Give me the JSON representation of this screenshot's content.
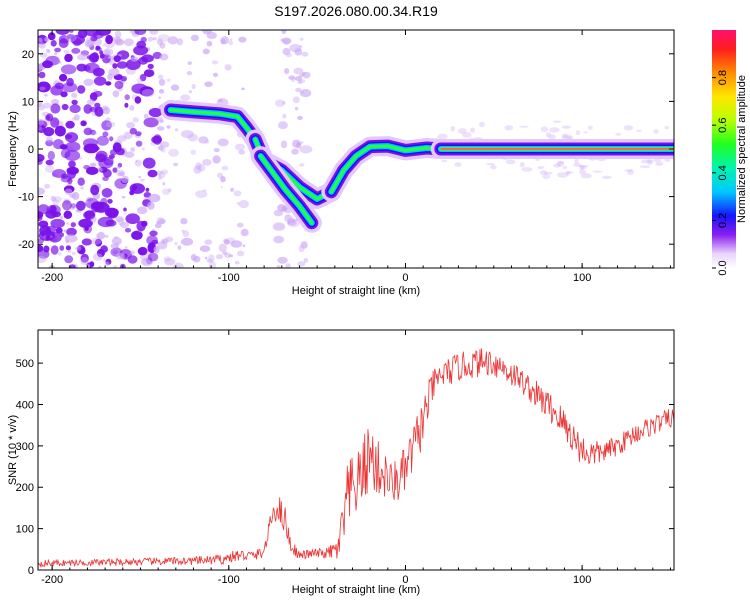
{
  "title": "S197.2026.080.00.34.R19",
  "colors": {
    "snr_line": "#ee3333",
    "blob_purple": "#7a10ea",
    "blob_light": "#cda8f7",
    "axis": "#000000"
  },
  "chart_data": [
    {
      "type": "heatmap",
      "name": "spectrogram",
      "xlabel": "Height of straight line (km)",
      "ylabel": "Frequency (Hz)",
      "xlim": [
        -208,
        152
      ],
      "ylim": [
        -25,
        25
      ],
      "xticks": [
        -200,
        -100,
        0,
        100
      ],
      "xtick_labels": [
        "-200",
        "-100",
        "0",
        "100"
      ],
      "yticks": [
        -20,
        -10,
        0,
        10,
        20
      ],
      "ytick_labels": [
        "-20",
        "-10",
        "0",
        "10",
        "20"
      ],
      "colorbar": {
        "label": "Normalized spectral amplitude",
        "range": [
          0,
          1
        ],
        "ticks": [
          0.0,
          0.2,
          0.4,
          0.6,
          0.8
        ],
        "tick_labels": [
          "0.0",
          "0.2",
          "0.4",
          "0.6",
          "0.8"
        ]
      },
      "ridges": [
        {
          "name": "upper-branch",
          "points": [
            [
              -133,
              8.2
            ],
            [
              -120,
              7.8
            ],
            [
              -105,
              7.4
            ],
            [
              -95,
              6.8
            ],
            [
              -90,
              4.5
            ],
            [
              -85,
              2.0
            ]
          ]
        },
        {
          "name": "descending-branch-a",
          "points": [
            [
              -85,
              2.0
            ],
            [
              -80,
              -2.5
            ],
            [
              -70,
              -4.5
            ],
            [
              -60,
              -8.0
            ],
            [
              -50,
              -10.5
            ],
            [
              -42,
              -9.0
            ]
          ]
        },
        {
          "name": "descending-branch-b",
          "points": [
            [
              -82,
              -1.5
            ],
            [
              -75,
              -5.0
            ],
            [
              -68,
              -8.5
            ],
            [
              -60,
              -12.0
            ],
            [
              -53,
              -15.5
            ]
          ]
        },
        {
          "name": "rising-branch",
          "points": [
            [
              -42,
              -9.0
            ],
            [
              -35,
              -4.5
            ],
            [
              -28,
              -1.5
            ],
            [
              -20,
              0.5
            ],
            [
              -10,
              0.6
            ],
            [
              0,
              -0.3
            ],
            [
              12,
              0.2
            ],
            [
              20,
              0.0
            ]
          ]
        },
        {
          "name": "steady-tone",
          "points": [
            [
              20,
              0.0
            ],
            [
              60,
              0.0
            ],
            [
              100,
              0.0
            ],
            [
              152,
              0.0
            ]
          ]
        }
      ]
    },
    {
      "type": "line",
      "name": "snr",
      "xlabel": "Height of straight line (km)",
      "ylabel": "SNR (10 * v/v)",
      "xlim": [
        -208,
        152
      ],
      "ylim": [
        0,
        580
      ],
      "xticks": [
        -200,
        -100,
        0,
        100
      ],
      "xtick_labels": [
        "-200",
        "-100",
        "0",
        "100"
      ],
      "yticks": [
        0,
        100,
        200,
        300,
        400,
        500
      ],
      "ytick_labels": [
        "0",
        "100",
        "200",
        "300",
        "400",
        "500"
      ],
      "series": [
        {
          "name": "SNR",
          "x": [
            -208,
            -180,
            -150,
            -120,
            -105,
            -95,
            -85,
            -80,
            -75,
            -72,
            -68,
            -65,
            -60,
            -52,
            -45,
            -38,
            -35,
            -32,
            -28,
            -25,
            -20,
            -18,
            -15,
            -12,
            -8,
            -3,
            0,
            5,
            10,
            15,
            20,
            30,
            40,
            48,
            55,
            65,
            75,
            85,
            95,
            100,
            105,
            112,
            120,
            130,
            140,
            152
          ],
          "base": [
            16,
            18,
            20,
            22,
            25,
            35,
            35,
            45,
            140,
            150,
            120,
            60,
            35,
            40,
            40,
            50,
            120,
            180,
            200,
            230,
            280,
            260,
            240,
            230,
            210,
            220,
            240,
            300,
            360,
            440,
            470,
            490,
            500,
            505,
            490,
            460,
            420,
            380,
            320,
            290,
            280,
            285,
            300,
            330,
            350,
            370
          ],
          "amp": [
            8,
            8,
            9,
            10,
            12,
            15,
            12,
            15,
            25,
            35,
            35,
            20,
            10,
            12,
            12,
            30,
            80,
            100,
            70,
            80,
            90,
            80,
            70,
            60,
            50,
            60,
            60,
            60,
            60,
            40,
            35,
            35,
            35,
            35,
            35,
            30,
            35,
            40,
            40,
            40,
            35,
            25,
            25,
            25,
            25,
            25
          ]
        }
      ]
    }
  ]
}
